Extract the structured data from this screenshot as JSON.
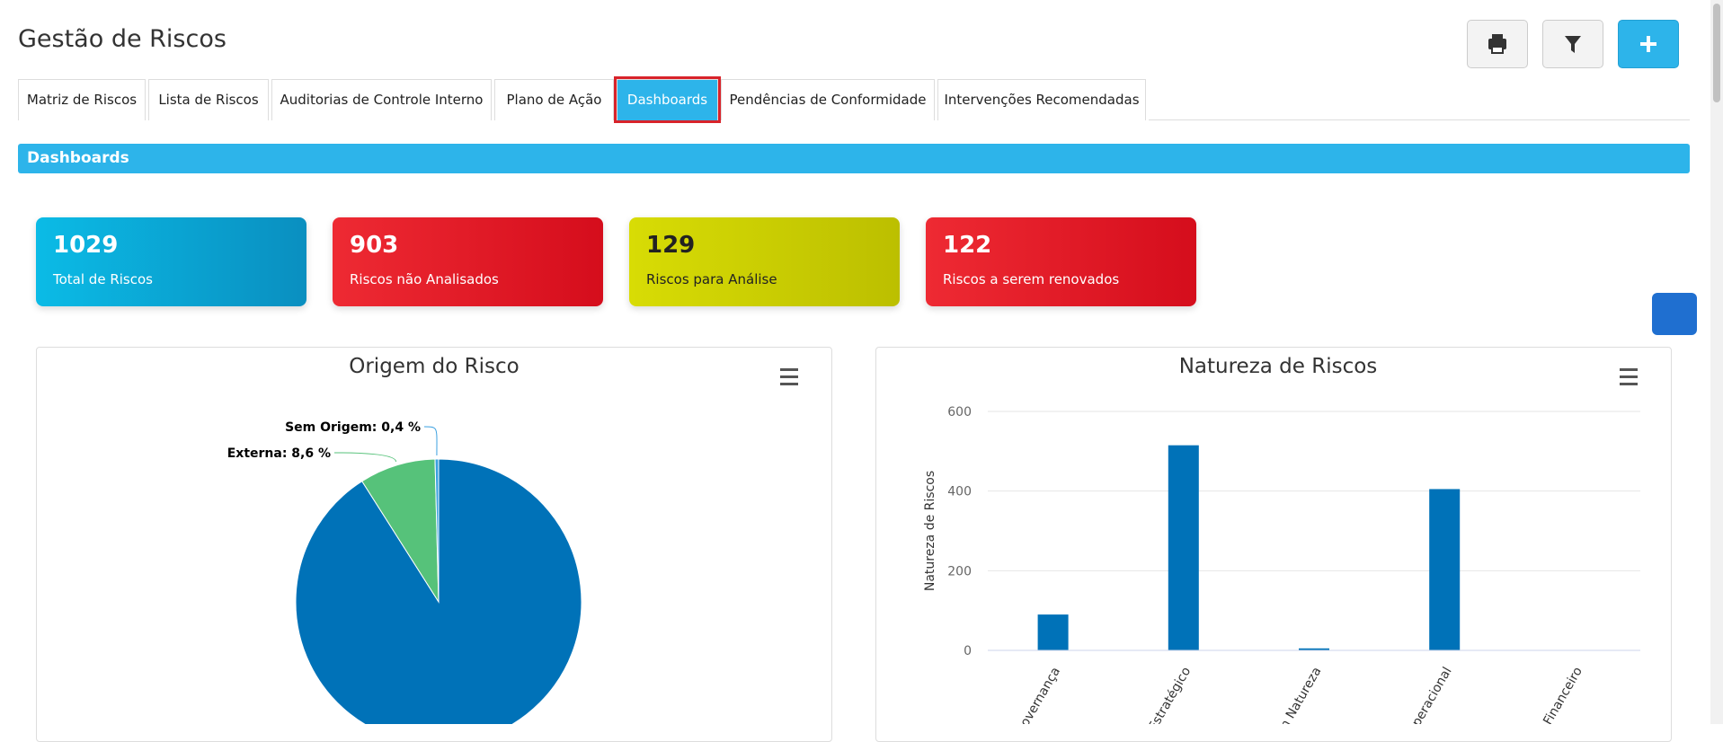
{
  "header": {
    "title": "Gestão de Riscos"
  },
  "tabs": [
    "Matriz de Riscos",
    "Lista de Riscos",
    "Auditorias de Controle Interno",
    "Plano de Ação",
    "Dashboards",
    "Pendências de Conformidade",
    "Intervenções Recomendadas"
  ],
  "section": {
    "title": "Dashboards"
  },
  "cards": [
    {
      "value": "1029",
      "label": "Total de Riscos"
    },
    {
      "value": "903",
      "label": "Riscos não Analisados"
    },
    {
      "value": "129",
      "label": "Riscos para Análise"
    },
    {
      "value": "122",
      "label": "Riscos a serem renovados"
    }
  ],
  "chart_data": [
    {
      "type": "pie",
      "title": "Origem do Risco",
      "values": [
        91,
        8.6,
        0.4
      ],
      "value_labels": [
        null,
        "Externa: 8,6 %",
        "Sem Origem: 0,4 %"
      ],
      "colors": [
        "#0072b8",
        "#56c27a",
        "#3aa0e0"
      ]
    },
    {
      "type": "bar",
      "title": "Natureza de Riscos",
      "y_label": "Natureza de Riscos",
      "categories": [
        "Governança",
        "Estratégico",
        "Sem Natureza",
        "Operacional",
        "Financeiro"
      ],
      "values": [
        90,
        515,
        5,
        405,
        0
      ],
      "color": "#0072b8",
      "ylim": [
        0,
        600
      ],
      "yticks": [
        0,
        200,
        400,
        600
      ],
      "grid": true
    }
  ]
}
